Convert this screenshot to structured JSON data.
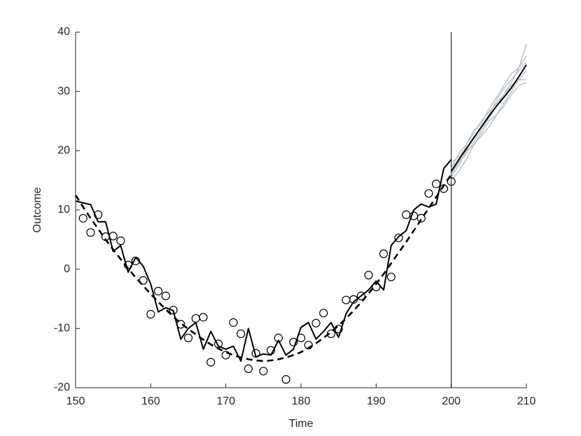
{
  "chart_data": {
    "type": "line",
    "xlabel": "Time",
    "ylabel": "Outcome",
    "xlim": [
      150,
      210
    ],
    "xticks": [
      150,
      160,
      170,
      180,
      190,
      200,
      210
    ],
    "ylim": [
      -20,
      40
    ],
    "yticks": [
      -20,
      -10,
      0,
      10,
      20,
      30,
      40
    ],
    "vlines": [
      200
    ],
    "grid": false,
    "series": [
      {
        "style": "solid",
        "color": "#b4bcc4",
        "x": [
          200,
          201,
          202,
          203,
          204,
          205,
          206,
          207,
          208,
          209,
          210
        ],
        "values": [
          16,
          18,
          19.5,
          21.5,
          23.5,
          25.5,
          27.5,
          29.5,
          31.5,
          34,
          38
        ]
      },
      {
        "style": "solid",
        "color": "#b4bcc4",
        "x": [
          200,
          201,
          202,
          203,
          204,
          205,
          206,
          207,
          208,
          209,
          210
        ],
        "values": [
          17,
          19.5,
          21,
          23,
          25,
          26.5,
          28,
          29.5,
          31,
          32,
          32
        ]
      },
      {
        "style": "solid",
        "color": "#b4bcc4",
        "x": [
          200,
          201,
          202,
          203,
          204,
          205,
          206,
          207,
          208,
          209,
          210
        ],
        "values": [
          15.5,
          17.5,
          20,
          21,
          23,
          25,
          26,
          28,
          30,
          32,
          33.5
        ]
      },
      {
        "style": "solid",
        "color": "#b4bcc4",
        "x": [
          200,
          201,
          202,
          203,
          204,
          205,
          206,
          207,
          208,
          209,
          210
        ],
        "values": [
          16.5,
          18,
          21,
          23.5,
          24.5,
          27,
          29,
          31,
          33,
          34,
          36
        ]
      },
      {
        "style": "solid",
        "color": "#b4bcc4",
        "x": [
          200,
          201,
          202,
          203,
          204,
          205,
          206,
          207,
          208,
          209,
          210
        ],
        "values": [
          15,
          16.5,
          18.5,
          21,
          22.5,
          24,
          26,
          27.5,
          29.5,
          31,
          31.5
        ]
      },
      {
        "style": "solid",
        "color": "#b4bcc4",
        "x": [
          200,
          201,
          202,
          203,
          204,
          205,
          206,
          207,
          208,
          209,
          210
        ],
        "values": [
          18,
          19,
          20.5,
          22,
          24,
          26,
          28.5,
          30.5,
          32,
          33.5,
          35
        ]
      },
      {
        "style": "markers",
        "color": "#000000",
        "x": [
          151,
          152,
          153,
          154,
          155,
          156,
          157,
          158,
          159,
          160,
          161,
          162,
          163,
          164,
          165,
          166,
          167,
          168,
          169,
          170,
          171,
          172,
          173,
          174,
          175,
          176,
          177,
          178,
          179,
          180,
          181,
          182,
          183,
          184,
          185,
          186,
          187,
          188,
          189,
          190,
          191,
          192,
          193,
          194,
          195,
          196,
          197,
          198,
          199,
          200
        ],
        "values": [
          8.6,
          6.2,
          9.2,
          5.5,
          5.6,
          4.8,
          0.7,
          1.4,
          -1.9,
          -7.6,
          -3.7,
          -4.5,
          -6.9,
          -9.3,
          -11.6,
          -8.3,
          -8.1,
          -15.7,
          -12.6,
          -14.5,
          -9.0,
          -10.9,
          -16.8,
          -14.2,
          -17.2,
          -13.7,
          -11.6,
          -18.6,
          -12.3,
          -11.6,
          -12.8,
          -9.1,
          -7.4,
          -10.9,
          -10.1,
          -5.2,
          -5.1,
          -4.5,
          -1.0,
          -3.0,
          2.6,
          -1.3,
          5.3,
          9.2,
          9.0,
          8.6,
          12.8,
          14.4,
          13.6,
          14.8
        ]
      },
      {
        "style": "solid",
        "color": "#000000",
        "x": [
          150,
          151,
          152,
          153,
          154,
          155,
          156,
          157,
          158,
          159,
          160,
          161,
          162,
          163,
          164,
          165,
          166,
          167,
          168,
          169,
          170,
          171,
          172,
          173,
          174,
          175,
          176,
          177,
          178,
          179,
          180,
          181,
          182,
          183,
          184,
          185,
          186,
          187,
          188,
          189,
          190,
          191,
          192,
          193,
          194,
          195,
          196,
          197,
          198,
          199,
          200
        ],
        "values": [
          11.5,
          11.2,
          10.9,
          8.0,
          8.0,
          3.0,
          4.0,
          -0.5,
          2.0,
          0.5,
          -2.5,
          -7.2,
          -6.5,
          -7.0,
          -11.8,
          -10.0,
          -9.0,
          -13.5,
          -10.5,
          -13.0,
          -13.5,
          -13.0,
          -15.5,
          -10.0,
          -14.8,
          -14.3,
          -14.5,
          -12.0,
          -14.5,
          -13.5,
          -9.8,
          -9.0,
          -11.8,
          -10.5,
          -9.0,
          -11.5,
          -7.5,
          -5.5,
          -4.5,
          -3.5,
          -2.0,
          -3.5,
          4.0,
          5.5,
          6.5,
          10.0,
          11.0,
          10.5,
          11.0,
          17.0,
          18.5
        ]
      },
      {
        "style": "dashed",
        "color": "#000000",
        "x": [
          150,
          151,
          152,
          153,
          154,
          155,
          156,
          157,
          158,
          159,
          160,
          161,
          162,
          163,
          164,
          165,
          166,
          167,
          168,
          169,
          170,
          171,
          172,
          173,
          174,
          175,
          176,
          177,
          178,
          179,
          180,
          181,
          182,
          183,
          184,
          185,
          186,
          187,
          188,
          189,
          190,
          191,
          192,
          193,
          194,
          195,
          196,
          197,
          198,
          199,
          200
        ],
        "values": [
          12.5,
          10.5,
          8.6,
          6.8,
          5.0,
          3.3,
          1.7,
          0.1,
          -1.4,
          -2.8,
          -4.2,
          -5.5,
          -6.8,
          -8.0,
          -9.1,
          -10.1,
          -11.0,
          -11.9,
          -12.7,
          -13.4,
          -14.0,
          -14.5,
          -14.9,
          -15.2,
          -15.4,
          -15.5,
          -15.4,
          -15.2,
          -14.9,
          -14.5,
          -14.0,
          -13.3,
          -12.5,
          -11.6,
          -10.6,
          -9.5,
          -8.3,
          -7.0,
          -5.6,
          -4.1,
          -2.5,
          -0.8,
          1.0,
          2.8,
          4.6,
          6.5,
          8.4,
          10.3,
          12.2,
          14.1,
          16.0
        ]
      },
      {
        "style": "solid",
        "color": "#000000",
        "x": [
          200,
          201,
          202,
          203,
          204,
          205,
          206,
          207,
          208,
          209,
          210
        ],
        "values": [
          16.5,
          18.5,
          20.3,
          22.2,
          24.0,
          25.8,
          27.5,
          29.0,
          30.6,
          32.5,
          34.5
        ]
      }
    ]
  }
}
